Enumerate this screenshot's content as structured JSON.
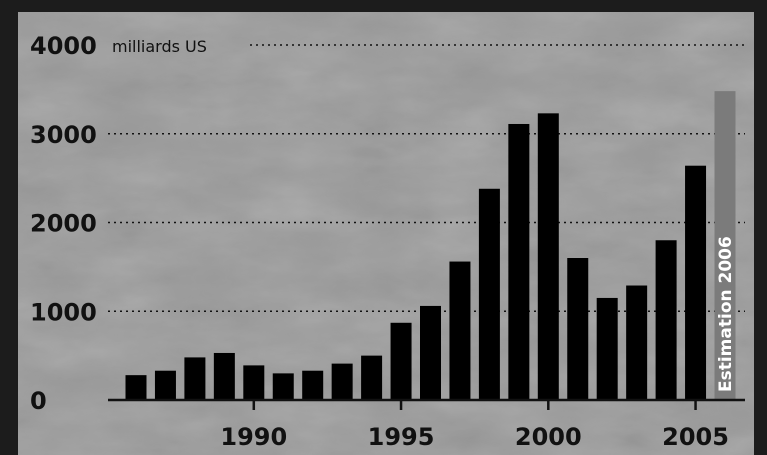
{
  "chart_data": {
    "type": "bar",
    "title": "",
    "xlabel": "",
    "ylabel": "milliards US",
    "ylim": [
      0,
      4000
    ],
    "yticks": [
      "0",
      "1000",
      "2000",
      "3000",
      "4000"
    ],
    "xticks": [
      "1990",
      "1995",
      "2000",
      "2005"
    ],
    "grid": true,
    "categories": [
      "1986",
      "1987",
      "1988",
      "1989",
      "1990",
      "1991",
      "1992",
      "1993",
      "1994",
      "1995",
      "1996",
      "1997",
      "1998",
      "1999",
      "2000",
      "2001",
      "2002",
      "2003",
      "2004",
      "2005",
      "2006"
    ],
    "values": [
      280,
      330,
      480,
      530,
      390,
      300,
      330,
      410,
      500,
      870,
      1060,
      1560,
      2380,
      3110,
      3230,
      1600,
      1150,
      1290,
      1800,
      2640,
      3480
    ],
    "estimate": {
      "category": "2006",
      "label": "Estimation 2006"
    },
    "colors": {
      "background": "#9a9a9a",
      "bar": "#000000",
      "estimate_bar": "#7b7b7b",
      "text": "#111111"
    }
  }
}
